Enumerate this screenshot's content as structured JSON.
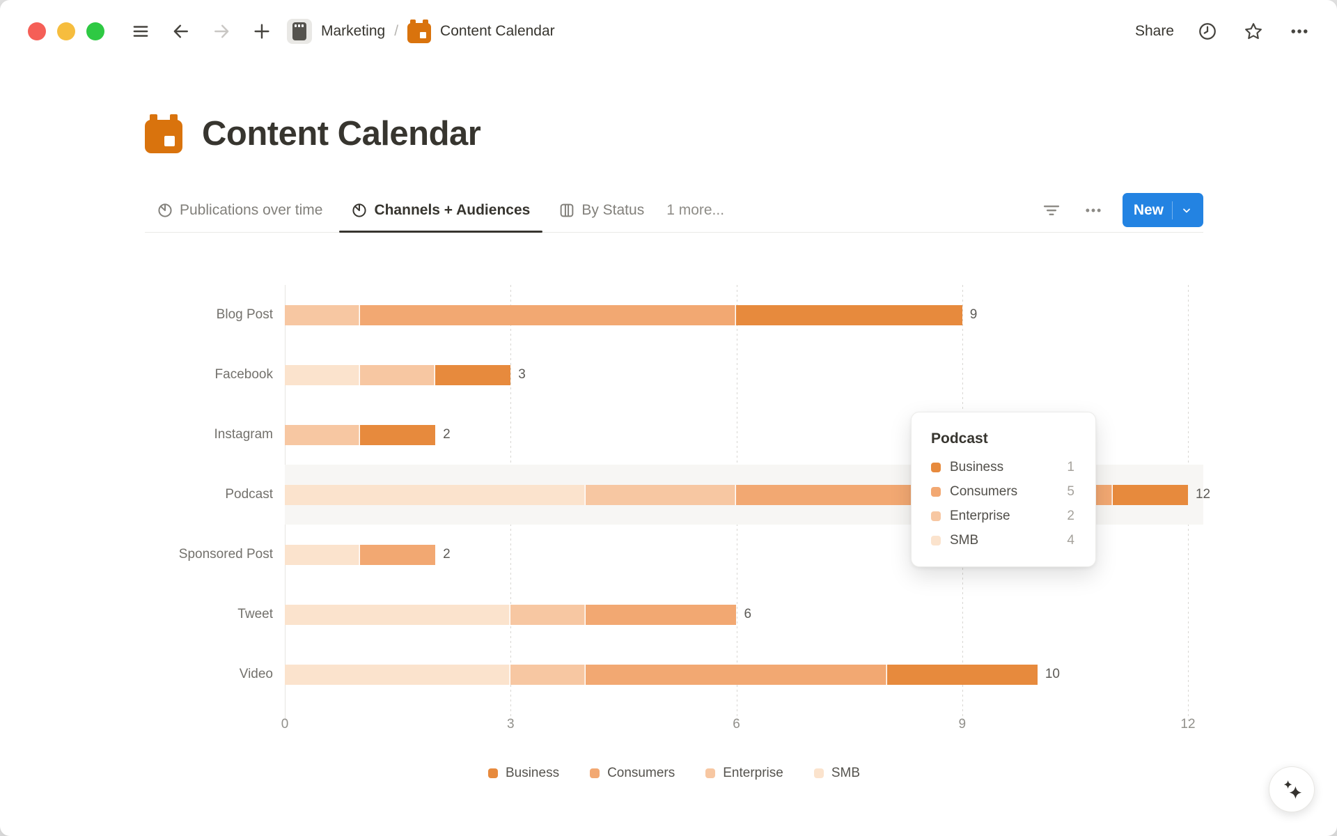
{
  "window": {
    "traffic_lights": {
      "close": "#f55f57",
      "minimize": "#f6bd3e",
      "zoom": "#2ec943"
    }
  },
  "titlebar": {
    "breadcrumb": {
      "workspace": "Marketing",
      "separator": "/",
      "page": "Content Calendar"
    },
    "share_label": "Share"
  },
  "page": {
    "title": "Content Calendar",
    "icon": "calendar-icon",
    "icon_color": "#d9730d"
  },
  "view_tabs": {
    "tabs": [
      {
        "label": "Publications over time",
        "icon": "pie-chart-icon",
        "active": false
      },
      {
        "label": "Channels + Audiences",
        "icon": "pie-chart-icon",
        "active": true
      },
      {
        "label": "By Status",
        "icon": "board-columns-icon",
        "active": false
      }
    ],
    "more_label": "1 more...",
    "new_button": {
      "label": "New",
      "color": "#2383e2"
    }
  },
  "chart_data": {
    "type": "bar",
    "orientation": "horizontal",
    "stacked": true,
    "title": "",
    "xlabel": "",
    "ylabel": "",
    "xlim": [
      0,
      12
    ],
    "x_ticks": [
      0,
      3,
      6,
      9,
      12
    ],
    "grid": "vertical-dotted",
    "legend_position": "bottom",
    "categories": [
      "Blog Post",
      "Facebook",
      "Instagram",
      "Podcast",
      "Sponsored Post",
      "Tweet",
      "Video"
    ],
    "series": [
      {
        "name": "SMB",
        "color": "#fbe3cd",
        "values": [
          0,
          1,
          0,
          4,
          1,
          3,
          3
        ]
      },
      {
        "name": "Enterprise",
        "color": "#f7c7a2",
        "values": [
          1,
          1,
          1,
          2,
          0,
          1,
          1
        ]
      },
      {
        "name": "Consumers",
        "color": "#f2a872",
        "values": [
          5,
          0,
          0,
          5,
          1,
          2,
          4
        ]
      },
      {
        "name": "Business",
        "color": "#e78a3d",
        "values": [
          3,
          1,
          1,
          1,
          0,
          0,
          2
        ]
      }
    ],
    "totals": [
      9,
      3,
      2,
      12,
      2,
      6,
      10
    ],
    "total_labels": [
      "9",
      "3",
      "2",
      "12",
      "2",
      "6",
      "10"
    ],
    "legend": [
      {
        "label": "Business",
        "color": "#e78a3d"
      },
      {
        "label": "Consumers",
        "color": "#f2a872"
      },
      {
        "label": "Enterprise",
        "color": "#f7c7a2"
      },
      {
        "label": "SMB",
        "color": "#fbe3cd"
      }
    ],
    "hovered_category": "Podcast"
  },
  "tooltip": {
    "title": "Podcast",
    "rows": [
      {
        "label": "Business",
        "value": "1",
        "color": "#e78a3d"
      },
      {
        "label": "Consumers",
        "value": "5",
        "color": "#f2a872"
      },
      {
        "label": "Enterprise",
        "value": "2",
        "color": "#f7c7a2"
      },
      {
        "label": "SMB",
        "value": "4",
        "color": "#fbe3cd"
      }
    ]
  }
}
